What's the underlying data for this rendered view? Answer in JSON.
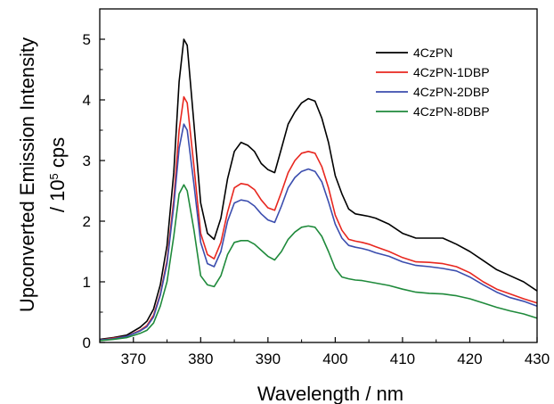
{
  "chart_data": {
    "type": "line",
    "xlabel": "Wavelength / nm",
    "ylabel_line1": "Upconverted Emission Intensity",
    "ylabel_line2_prefix": "/ 10",
    "ylabel_line2_exp": "5",
    "ylabel_line2_suffix": " cps",
    "xlim": [
      365,
      430
    ],
    "ylim": [
      0,
      5.5
    ],
    "xticks": [
      370,
      380,
      390,
      400,
      410,
      420,
      430
    ],
    "yticks": [
      0,
      1,
      2,
      3,
      4,
      5
    ],
    "grid": false,
    "legend_position": "top-right",
    "x": [
      365,
      367,
      369,
      371,
      372,
      373,
      374,
      375,
      376,
      376.8,
      377.5,
      378,
      379,
      380,
      381,
      382,
      383,
      384,
      385,
      386,
      387,
      388,
      389,
      390,
      391,
      392,
      393,
      394,
      395,
      396,
      397,
      398,
      399,
      400,
      401,
      402,
      403,
      404,
      405,
      406,
      408,
      410,
      412,
      414,
      416,
      418,
      420,
      422,
      424,
      426,
      428,
      430
    ],
    "series": [
      {
        "name": "4CzPN",
        "color": "#000000",
        "values": [
          0.05,
          0.08,
          0.12,
          0.25,
          0.35,
          0.55,
          0.95,
          1.6,
          2.8,
          4.3,
          5.0,
          4.9,
          3.6,
          2.3,
          1.8,
          1.7,
          2.05,
          2.7,
          3.15,
          3.3,
          3.25,
          3.15,
          2.95,
          2.85,
          2.8,
          3.2,
          3.6,
          3.8,
          3.95,
          4.02,
          3.98,
          3.7,
          3.3,
          2.75,
          2.45,
          2.2,
          2.12,
          2.1,
          2.08,
          2.05,
          1.95,
          1.8,
          1.72,
          1.72,
          1.72,
          1.62,
          1.5,
          1.35,
          1.2,
          1.1,
          1.0,
          0.85
        ]
      },
      {
        "name": "4CzPN-1DBP",
        "color": "#e8271f",
        "values": [
          0.04,
          0.07,
          0.1,
          0.2,
          0.28,
          0.45,
          0.8,
          1.35,
          2.35,
          3.5,
          4.05,
          3.95,
          2.9,
          1.8,
          1.45,
          1.38,
          1.65,
          2.15,
          2.55,
          2.62,
          2.6,
          2.52,
          2.35,
          2.22,
          2.18,
          2.48,
          2.8,
          3.0,
          3.12,
          3.15,
          3.12,
          2.9,
          2.55,
          2.1,
          1.85,
          1.7,
          1.67,
          1.65,
          1.62,
          1.58,
          1.5,
          1.4,
          1.33,
          1.32,
          1.3,
          1.25,
          1.15,
          1.0,
          0.88,
          0.8,
          0.72,
          0.65
        ]
      },
      {
        "name": "4CzPN-2DBP",
        "color": "#3b4dae",
        "values": [
          0.04,
          0.06,
          0.1,
          0.19,
          0.26,
          0.42,
          0.78,
          1.3,
          2.25,
          3.2,
          3.6,
          3.5,
          2.6,
          1.65,
          1.3,
          1.25,
          1.5,
          2.0,
          2.3,
          2.35,
          2.33,
          2.25,
          2.12,
          2.02,
          1.98,
          2.25,
          2.55,
          2.72,
          2.82,
          2.86,
          2.82,
          2.65,
          2.32,
          1.95,
          1.72,
          1.6,
          1.57,
          1.55,
          1.52,
          1.48,
          1.42,
          1.33,
          1.27,
          1.25,
          1.22,
          1.18,
          1.08,
          0.95,
          0.83,
          0.74,
          0.68,
          0.6
        ]
      },
      {
        "name": "4CzPN-8DBP",
        "color": "#1f8a3b",
        "values": [
          0.03,
          0.05,
          0.08,
          0.15,
          0.2,
          0.32,
          0.6,
          1.0,
          1.75,
          2.45,
          2.6,
          2.5,
          1.85,
          1.1,
          0.95,
          0.92,
          1.1,
          1.45,
          1.65,
          1.68,
          1.68,
          1.62,
          1.52,
          1.42,
          1.36,
          1.5,
          1.7,
          1.82,
          1.9,
          1.92,
          1.9,
          1.75,
          1.5,
          1.22,
          1.08,
          1.05,
          1.03,
          1.02,
          1.0,
          0.98,
          0.94,
          0.88,
          0.83,
          0.81,
          0.8,
          0.77,
          0.72,
          0.65,
          0.58,
          0.52,
          0.47,
          0.4
        ]
      }
    ]
  }
}
